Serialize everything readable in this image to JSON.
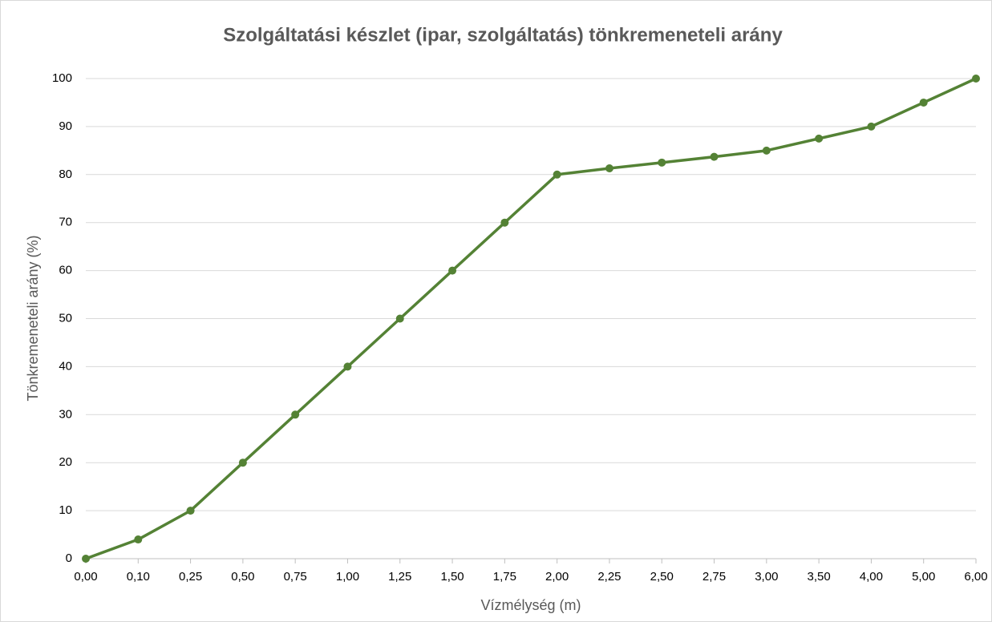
{
  "chart_data": {
    "type": "line",
    "title": "Szolgáltatási készlet (ipar, szolgáltatás) tönkremeneteli arány",
    "x_label": "Vízmélység (m)",
    "y_label": "Tönkremeneteli arány  (%)",
    "categories": [
      "0,00",
      "0,10",
      "0,25",
      "0,50",
      "0,75",
      "1,00",
      "1,25",
      "1,50",
      "1,75",
      "2,00",
      "2,25",
      "2,50",
      "2,75",
      "3,00",
      "3,50",
      "4,00",
      "5,00",
      "6,00"
    ],
    "series": [
      {
        "name": "Tönkremeneteli arány",
        "color": "#548235",
        "values": [
          0,
          4,
          10,
          20,
          30,
          40,
          50,
          60,
          70,
          80,
          81.3,
          82.5,
          83.7,
          85,
          87.5,
          90,
          95,
          100
        ]
      }
    ],
    "ylim": [
      0,
      100
    ],
    "yticks": [
      0,
      10,
      20,
      30,
      40,
      50,
      60,
      70,
      80,
      90,
      100
    ],
    "grid": true
  }
}
